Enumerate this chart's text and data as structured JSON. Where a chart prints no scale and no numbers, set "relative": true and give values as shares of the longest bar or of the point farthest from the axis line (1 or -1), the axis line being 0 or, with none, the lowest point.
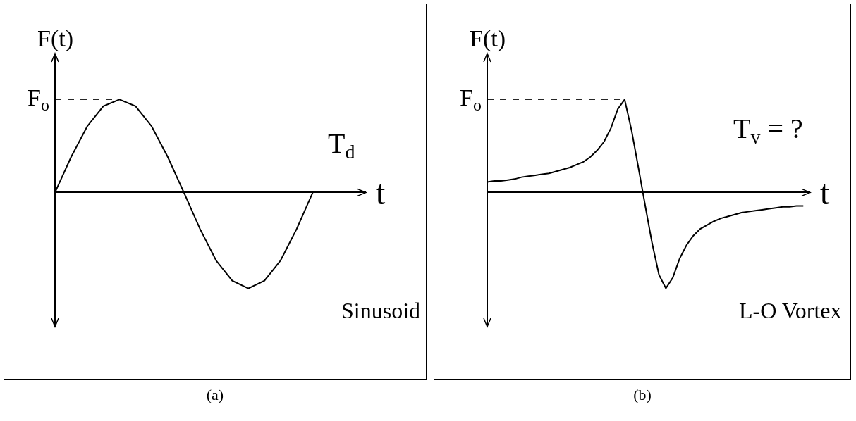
{
  "chart_data": [
    {
      "type": "line",
      "title": "(a)",
      "xlabel": "t",
      "ylabel": "F(t)",
      "relative": true,
      "marker": "none",
      "line_style": "solid",
      "categories": [
        null,
        null,
        null,
        null,
        null,
        null,
        null,
        null,
        null,
        null,
        null,
        null,
        null,
        null,
        null,
        null,
        null
      ],
      "series": [
        {
          "color": "#000000",
          "values": [
            0,
            0.37,
            0.69,
            0.9,
            0.97,
            0.9,
            0.69,
            0.37,
            0,
            -0.38,
            -0.71,
            -0.92,
            -1,
            -0.92,
            -0.71,
            -0.38,
            0
          ]
        }
      ],
      "ref_lines": [
        {
          "axis": "y",
          "value": 0.97,
          "label": "F$_{o}$",
          "line_style": "dashed"
        }
      ],
      "annotations": [
        "T$_{d}$",
        "Sinusoid"
      ]
    },
    {
      "type": "line",
      "title": "(b)",
      "xlabel": "t",
      "ylabel": "F(t)",
      "relative": true,
      "marker": "none",
      "line_style": "solid",
      "categories": [
        null,
        null,
        null,
        null,
        null,
        null,
        null,
        null,
        null,
        null,
        null,
        null,
        null,
        null,
        null,
        null,
        null,
        null,
        null,
        null,
        null,
        null,
        null,
        null,
        null,
        null,
        null,
        null,
        null,
        null,
        null,
        null,
        null,
        null,
        null,
        null,
        null,
        null,
        null,
        null,
        null,
        null,
        null,
        null,
        null,
        null,
        null
      ],
      "series": [
        {
          "color": "#000000",
          "values": [
            0.11,
            0.12,
            0.12,
            0.13,
            0.14,
            0.16,
            0.17,
            0.18,
            0.19,
            0.2,
            0.22,
            0.24,
            0.26,
            0.29,
            0.32,
            0.37,
            0.44,
            0.53,
            0.67,
            0.87,
            0.97,
            0.65,
            0.26,
            -0.14,
            -0.53,
            -0.86,
            -1,
            -0.89,
            -0.69,
            -0.55,
            -0.45,
            -0.38,
            -0.34,
            -0.3,
            -0.27,
            -0.25,
            -0.23,
            -0.21,
            -0.2,
            -0.19,
            -0.18,
            -0.17,
            -0.16,
            -0.15,
            -0.15,
            -0.14,
            -0.14
          ]
        }
      ],
      "ref_lines": [
        {
          "axis": "y",
          "value": 0.97,
          "label": "F$_{o}$",
          "line_style": "dashed"
        }
      ],
      "annotations": [
        "T$_{v}$ = ?",
        "L-O Vortex"
      ]
    }
  ]
}
